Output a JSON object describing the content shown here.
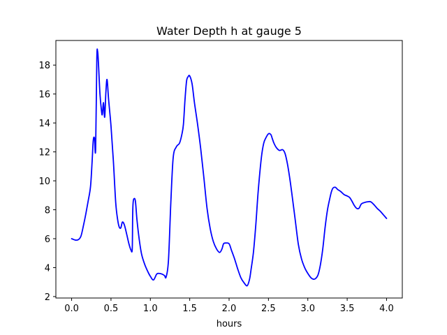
{
  "chart_data": {
    "type": "line",
    "title": "Water Depth h at gauge 5",
    "xlabel": "hours",
    "ylabel": "",
    "xlim": [
      -0.2,
      4.2
    ],
    "ylim": [
      1.9,
      19.7
    ],
    "x_ticks": [
      "0.0",
      "0.5",
      "1.0",
      "1.5",
      "2.0",
      "2.5",
      "3.0",
      "3.5",
      "4.0"
    ],
    "y_ticks": [
      "2",
      "4",
      "6",
      "8",
      "10",
      "12",
      "14",
      "16",
      "18"
    ],
    "grid": false,
    "legend": "none",
    "series": [
      {
        "color": "#0000ff",
        "x": [
          0.0,
          0.05,
          0.09,
          0.12,
          0.15,
          0.18,
          0.21,
          0.24,
          0.26,
          0.275,
          0.29,
          0.305,
          0.32,
          0.33,
          0.34,
          0.36,
          0.38,
          0.39,
          0.405,
          0.42,
          0.435,
          0.45,
          0.47,
          0.5,
          0.53,
          0.56,
          0.585,
          0.605,
          0.625,
          0.645,
          0.67,
          0.7,
          0.73,
          0.755,
          0.77,
          0.775,
          0.78,
          0.79,
          0.81,
          0.83,
          0.86,
          0.89,
          0.93,
          0.97,
          1.0,
          1.04,
          1.08,
          1.11,
          1.15,
          1.18,
          1.2,
          1.23,
          1.26,
          1.29,
          1.33,
          1.37,
          1.4,
          1.42,
          1.44,
          1.46,
          1.48,
          1.5,
          1.53,
          1.56,
          1.6,
          1.64,
          1.68,
          1.72,
          1.76,
          1.8,
          1.84,
          1.88,
          1.91,
          1.93,
          1.96,
          2.0,
          2.03,
          2.07,
          2.11,
          2.15,
          2.19,
          2.23,
          2.26,
          2.28,
          2.31,
          2.34,
          2.37,
          2.41,
          2.44,
          2.47,
          2.5,
          2.53,
          2.55,
          2.57,
          2.6,
          2.64,
          2.68,
          2.71,
          2.74,
          2.77,
          2.8,
          2.84,
          2.88,
          2.92,
          2.96,
          3.0,
          3.04,
          3.07,
          3.1,
          3.13,
          3.16,
          3.19,
          3.22,
          3.25,
          3.28,
          3.3,
          3.32,
          3.35,
          3.38,
          3.42,
          3.46,
          3.5,
          3.53,
          3.56,
          3.59,
          3.62,
          3.65,
          3.68,
          3.72,
          3.76,
          3.8,
          3.84,
          3.88,
          3.92,
          3.96,
          4.0
        ],
        "y": [
          6.0,
          5.9,
          5.95,
          6.2,
          6.9,
          7.7,
          8.6,
          9.6,
          11.3,
          12.8,
          12.95,
          12.2,
          18.4,
          18.95,
          18.2,
          16.0,
          14.8,
          14.6,
          15.4,
          14.4,
          16.1,
          17.0,
          15.6,
          13.8,
          11.4,
          8.5,
          7.3,
          6.8,
          6.75,
          7.15,
          6.95,
          6.3,
          5.6,
          5.2,
          5.3,
          7.5,
          8.4,
          8.75,
          8.6,
          7.3,
          5.9,
          4.9,
          4.2,
          3.7,
          3.4,
          3.15,
          3.55,
          3.6,
          3.55,
          3.45,
          3.35,
          4.5,
          8.5,
          11.6,
          12.35,
          12.6,
          13.2,
          13.9,
          15.6,
          16.9,
          17.2,
          17.25,
          16.7,
          15.4,
          13.9,
          12.2,
          10.2,
          8.1,
          6.7,
          5.8,
          5.3,
          5.05,
          5.3,
          5.65,
          5.7,
          5.65,
          5.2,
          4.6,
          3.9,
          3.3,
          2.95,
          2.75,
          3.2,
          3.9,
          5.1,
          7.0,
          9.3,
          11.6,
          12.6,
          13.0,
          13.25,
          13.2,
          12.9,
          12.6,
          12.3,
          12.1,
          12.15,
          11.9,
          11.2,
          10.2,
          9.0,
          7.3,
          5.6,
          4.6,
          4.0,
          3.6,
          3.3,
          3.2,
          3.25,
          3.5,
          4.2,
          5.3,
          6.8,
          8.0,
          8.8,
          9.25,
          9.5,
          9.55,
          9.4,
          9.25,
          9.05,
          8.95,
          8.85,
          8.6,
          8.3,
          8.1,
          8.1,
          8.4,
          8.5,
          8.55,
          8.55,
          8.35,
          8.1,
          7.9,
          7.65,
          7.4
        ]
      }
    ]
  }
}
